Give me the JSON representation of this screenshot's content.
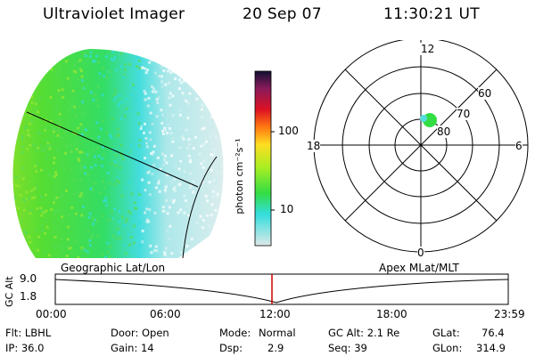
{
  "header": {
    "title": "Ultraviolet Imager",
    "date": "20 Sep 07",
    "time": "11:30:21 UT"
  },
  "colorbar": {
    "unit_label": "photon cm⁻²s⁻¹",
    "ticks": [
      "100",
      "10"
    ]
  },
  "polar_plot": {
    "mlt_labels": [
      "12",
      "18",
      "6",
      "0"
    ],
    "lat_labels": [
      "60",
      "70",
      "80"
    ]
  },
  "timeline": {
    "y_axis_label": "GC Alt",
    "y_ticks": [
      "9.0",
      "1.8"
    ],
    "left_label": "Geographic Lat/Lon",
    "right_label": "Apex  MLat/MLT",
    "time_ticks": [
      "00:00",
      "06:00",
      "12:00",
      "18:00",
      "23:59"
    ]
  },
  "info": {
    "row1": {
      "flt": "Flt: LBHL",
      "door": "Door: Open",
      "mode_label": "Mode:",
      "mode_value": "Normal",
      "gcalt": "GC Alt: 2.1 Re",
      "glat_label": "GLat:",
      "glat_value": "76.4"
    },
    "row2": {
      "ip": "IP: 36.0",
      "gain": "Gain: 14",
      "dsp_label": "Dsp:",
      "dsp_value": "2.9",
      "seq": "Seq: 39",
      "glon_label": "GLon:",
      "glon_value": "314.9"
    }
  },
  "colors": {
    "dayside_green": "#33dd44",
    "mid_cyan": "#33dddd",
    "faint": "#cfeeee",
    "marker_red": "#cc0000"
  }
}
